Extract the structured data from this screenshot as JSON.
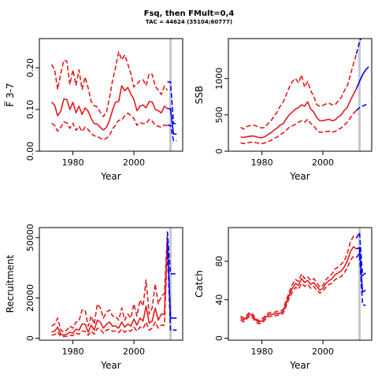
{
  "figure": {
    "title": "Fsq, then FMult=0,4",
    "subtitle": "TAC = 44624 (35104;60777)"
  },
  "chart_data": [
    {
      "type": "line",
      "ylabel": "F̅ 3-7",
      "xlabel": "Year",
      "xlim": [
        1969,
        2016
      ],
      "ylim": [
        0,
        0.27
      ],
      "xticks": [
        1980,
        2000
      ],
      "yticks": [
        "0.00",
        "0.10",
        "0.20"
      ],
      "grid": false,
      "vline_year": 2012,
      "x": [
        1973,
        1974,
        1975,
        1976,
        1977,
        1978,
        1979,
        1980,
        1981,
        1982,
        1983,
        1984,
        1985,
        1986,
        1987,
        1988,
        1989,
        1990,
        1991,
        1992,
        1993,
        1994,
        1995,
        1996,
        1997,
        1998,
        1999,
        2000,
        2001,
        2002,
        2003,
        2004,
        2005,
        2006,
        2007,
        2008,
        2009,
        2010,
        2011
      ],
      "series": [
        {
          "role": "median",
          "color": "#e41a1c",
          "dash": false,
          "values": [
            0.118,
            0.11,
            0.085,
            0.096,
            0.125,
            0.124,
            0.1,
            0.117,
            0.092,
            0.108,
            0.088,
            0.104,
            0.096,
            0.078,
            0.066,
            0.065,
            0.057,
            0.051,
            0.057,
            0.074,
            0.099,
            0.118,
            0.119,
            0.157,
            0.145,
            0.153,
            0.137,
            0.124,
            0.097,
            0.108,
            0.111,
            0.104,
            0.119,
            0.118,
            0.1,
            0.097,
            0.092,
            0.108,
            0.102
          ]
        },
        {
          "role": "upper",
          "color": "#e41a1c",
          "dash": true,
          "values": [
            0.208,
            0.195,
            0.148,
            0.186,
            0.218,
            0.216,
            0.16,
            0.195,
            0.158,
            0.195,
            0.148,
            0.178,
            0.151,
            0.119,
            0.109,
            0.106,
            0.093,
            0.083,
            0.093,
            0.128,
            0.169,
            0.201,
            0.238,
            0.219,
            0.231,
            0.209,
            0.186,
            0.154,
            0.161,
            0.169,
            0.171,
            0.157,
            0.186,
            0.184,
            0.156,
            0.146,
            0.136,
            0.156,
            0.146
          ]
        },
        {
          "role": "lower",
          "color": "#e41a1c",
          "dash": true,
          "values": [
            0.067,
            0.062,
            0.048,
            0.057,
            0.07,
            0.068,
            0.055,
            0.067,
            0.05,
            0.06,
            0.047,
            0.058,
            0.052,
            0.042,
            0.037,
            0.036,
            0.031,
            0.028,
            0.031,
            0.038,
            0.053,
            0.063,
            0.074,
            0.075,
            0.085,
            0.091,
            0.086,
            0.079,
            0.062,
            0.069,
            0.066,
            0.066,
            0.076,
            0.072,
            0.062,
            0.06,
            0.057,
            0.063,
            0.061
          ]
        },
        {
          "role": "projection",
          "color": "#0000ff",
          "dash": false,
          "x": [
            2011,
            2012,
            2013,
            2014
          ],
          "values": [
            0.102,
            0.102,
            0.041,
            0.041
          ]
        },
        {
          "role": "projection-upper",
          "color": "#0000ff",
          "dash": true,
          "x": [
            2011,
            2012,
            2013,
            2014
          ],
          "values": [
            0.166,
            0.166,
            0.066,
            0.066
          ]
        },
        {
          "role": "projection-lower",
          "color": "#0000ff",
          "dash": true,
          "x": [
            2011,
            2012,
            2013,
            2014
          ],
          "values": [
            0.062,
            0.062,
            0.025,
            0.025
          ]
        }
      ]
    },
    {
      "type": "line",
      "ylabel": "SSB",
      "xlabel": "Year",
      "xlim": [
        1969,
        2016
      ],
      "ylim": [
        0,
        1550
      ],
      "xticks": [
        1980,
        2000
      ],
      "yticks": [
        "0",
        "500",
        "1000"
      ],
      "grid": false,
      "vline_year": 2012,
      "x": [
        1973,
        1974,
        1975,
        1976,
        1977,
        1978,
        1979,
        1980,
        1981,
        1982,
        1983,
        1984,
        1985,
        1986,
        1987,
        1988,
        1989,
        1990,
        1991,
        1992,
        1993,
        1994,
        1995,
        1996,
        1997,
        1998,
        1999,
        2000,
        2001,
        2002,
        2003,
        2004,
        2005,
        2006,
        2007,
        2008,
        2009,
        2010,
        2011
      ],
      "series": [
        {
          "role": "median",
          "color": "#e41a1c",
          "dash": false,
          "values": [
            195,
            190,
            198,
            205,
            210,
            200,
            190,
            185,
            200,
            230,
            255,
            290,
            320,
            360,
            380,
            450,
            500,
            540,
            580,
            600,
            640,
            620,
            680,
            580,
            540,
            460,
            420,
            420,
            430,
            440,
            420,
            430,
            470,
            500,
            560,
            600,
            700,
            780,
            860
          ]
        },
        {
          "role": "upper",
          "color": "#e41a1c",
          "dash": true,
          "values": [
            330,
            305,
            340,
            350,
            360,
            350,
            330,
            320,
            330,
            380,
            420,
            480,
            540,
            620,
            680,
            780,
            880,
            960,
            1000,
            940,
            1050,
            880,
            960,
            830,
            760,
            640,
            620,
            630,
            650,
            660,
            640,
            640,
            690,
            740,
            830,
            900,
            1050,
            1200,
            1340
          ]
        },
        {
          "role": "lower",
          "color": "#e41a1c",
          "dash": true,
          "values": [
            115,
            105,
            115,
            120,
            125,
            118,
            110,
            105,
            115,
            130,
            150,
            180,
            195,
            230,
            250,
            290,
            330,
            350,
            370,
            400,
            420,
            400,
            440,
            380,
            350,
            290,
            260,
            265,
            270,
            275,
            265,
            270,
            300,
            320,
            360,
            400,
            460,
            520,
            560
          ]
        },
        {
          "role": "projection",
          "color": "#0000ff",
          "dash": false,
          "x": [
            2011,
            2012,
            2013,
            2014,
            2015
          ],
          "values": [
            860,
            960,
            1050,
            1120,
            1160
          ]
        },
        {
          "role": "projection-upper",
          "color": "#0000ff",
          "dash": true,
          "x": [
            2011,
            2012,
            2013
          ],
          "values": [
            1340,
            1500,
            1600
          ]
        },
        {
          "role": "projection-lower",
          "color": "#0000ff",
          "dash": true,
          "x": [
            2011,
            2012,
            2013,
            2014,
            2015
          ],
          "values": [
            560,
            600,
            620,
            640,
            660
          ]
        }
      ]
    },
    {
      "type": "line",
      "ylabel": "Recruitment",
      "xlabel": "Year",
      "xlim": [
        1969,
        2016
      ],
      "ylim": [
        -1000,
        55000
      ],
      "xticks": [
        1980,
        2000
      ],
      "yticks": [
        "0",
        "20000",
        "50000"
      ],
      "grid": false,
      "vline_year": 2012,
      "x": [
        1973,
        1974,
        1975,
        1976,
        1977,
        1978,
        1979,
        1980,
        1981,
        1982,
        1983,
        1984,
        1985,
        1986,
        1987,
        1988,
        1989,
        1990,
        1991,
        1992,
        1993,
        1994,
        1995,
        1996,
        1997,
        1998,
        1999,
        2000,
        2001,
        2002,
        2003,
        2004,
        2005,
        2006,
        2007,
        2008,
        2009,
        2010,
        2011
      ],
      "series": [
        {
          "role": "median",
          "color": "#e41a1c",
          "dash": false,
          "values": [
            3000,
            3500,
            5500,
            2000,
            1500,
            2000,
            3000,
            2500,
            4500,
            4000,
            7000,
            7000,
            3000,
            6500,
            4000,
            9000,
            8000,
            5000,
            7000,
            8000,
            6000,
            6000,
            5000,
            8000,
            5500,
            7000,
            6000,
            9500,
            6500,
            10000,
            8500,
            16000,
            7500,
            8500,
            15000,
            9000,
            12000,
            12000,
            50000
          ]
        },
        {
          "role": "upper",
          "color": "#e41a1c",
          "dash": true,
          "values": [
            6000,
            7000,
            10000,
            4000,
            3000,
            4000,
            6000,
            5000,
            8000,
            8500,
            14000,
            14000,
            6000,
            11000,
            7000,
            17000,
            15000,
            10000,
            13000,
            14000,
            11000,
            11000,
            9000,
            15000,
            9000,
            12000,
            10000,
            17000,
            11000,
            19000,
            16000,
            29000,
            12000,
            15000,
            27000,
            17000,
            21000,
            22000,
            53000
          ]
        },
        {
          "role": "lower",
          "color": "#e41a1c",
          "dash": true,
          "values": [
            1500,
            1800,
            3000,
            1000,
            800,
            1000,
            1500,
            1300,
            2500,
            2000,
            3500,
            3500,
            1500,
            3500,
            2000,
            5000,
            4500,
            2500,
            4000,
            4500,
            3500,
            3500,
            2800,
            4500,
            3000,
            4000,
            3500,
            5500,
            3500,
            5500,
            4800,
            8000,
            4000,
            5000,
            8000,
            5000,
            6500,
            6500,
            45000
          ]
        },
        {
          "role": "projection",
          "color": "#0000ff",
          "dash": false,
          "x": [
            2011,
            2012,
            2013,
            2014
          ],
          "values": [
            50000,
            10000,
            10000,
            10000
          ]
        },
        {
          "role": "projection-upper",
          "color": "#0000ff",
          "dash": true,
          "x": [
            2011,
            2012,
            2013,
            2014
          ],
          "values": [
            53000,
            32000,
            32000,
            32000
          ]
        },
        {
          "role": "projection-lower",
          "color": "#0000ff",
          "dash": true,
          "x": [
            2011,
            2012,
            2013,
            2014
          ],
          "values": [
            45000,
            4000,
            4000,
            4000
          ]
        }
      ]
    },
    {
      "type": "line",
      "ylabel": "Catch",
      "xlabel": "Year",
      "xlim": [
        1969,
        2016
      ],
      "ylim": [
        -2,
        115
      ],
      "xticks": [
        1980,
        2000
      ],
      "yticks": [
        "0",
        "40",
        "80"
      ],
      "grid": false,
      "vline_year": 2012,
      "x": [
        1973,
        1974,
        1975,
        1976,
        1977,
        1978,
        1979,
        1980,
        1981,
        1982,
        1983,
        1984,
        1985,
        1986,
        1987,
        1988,
        1989,
        1990,
        1991,
        1992,
        1993,
        1994,
        1995,
        1996,
        1997,
        1998,
        1999,
        2000,
        2001,
        2002,
        2003,
        2004,
        2005,
        2006,
        2007,
        2008,
        2009,
        2010,
        2011
      ],
      "series": [
        {
          "role": "median",
          "color": "#e41a1c",
          "dash": false,
          "values": [
            21,
            19,
            22,
            25,
            23,
            19,
            17,
            18,
            21,
            24,
            25,
            25,
            26,
            26,
            28,
            37,
            45,
            52,
            57,
            55,
            62,
            58,
            60,
            56,
            58,
            54,
            50,
            52,
            57,
            60,
            62,
            66,
            68,
            70,
            74,
            80,
            90,
            95,
            93
          ]
        },
        {
          "role": "upper",
          "color": "#e41a1c",
          "dash": true,
          "values": [
            23,
            21,
            24,
            27,
            25,
            21,
            18,
            20,
            23,
            26,
            27,
            27,
            28,
            28,
            30,
            40,
            48,
            56,
            61,
            59,
            67,
            62,
            64,
            60,
            62,
            58,
            53,
            55,
            61,
            64,
            67,
            72,
            74,
            77,
            80,
            88,
            100,
            106,
            104
          ]
        },
        {
          "role": "lower",
          "color": "#e41a1c",
          "dash": true,
          "values": [
            19,
            17,
            20,
            23,
            21,
            17,
            15,
            16,
            19,
            22,
            23,
            23,
            24,
            24,
            26,
            34,
            42,
            48,
            53,
            51,
            57,
            54,
            56,
            52,
            54,
            50,
            47,
            49,
            53,
            56,
            57,
            61,
            63,
            64,
            68,
            73,
            81,
            85,
            84
          ]
        },
        {
          "role": "projection",
          "color": "#0000ff",
          "dash": false,
          "x": [
            2011,
            2012,
            2013,
            2014
          ],
          "values": [
            93,
            94,
            48,
            50
          ]
        },
        {
          "role": "projection-upper",
          "color": "#0000ff",
          "dash": true,
          "x": [
            2011,
            2012,
            2013,
            2014
          ],
          "values": [
            104,
            110,
            65,
            68
          ]
        },
        {
          "role": "projection-lower",
          "color": "#0000ff",
          "dash": true,
          "x": [
            2011,
            2012,
            2013,
            2014
          ],
          "values": [
            84,
            88,
            35,
            34
          ]
        }
      ]
    }
  ]
}
